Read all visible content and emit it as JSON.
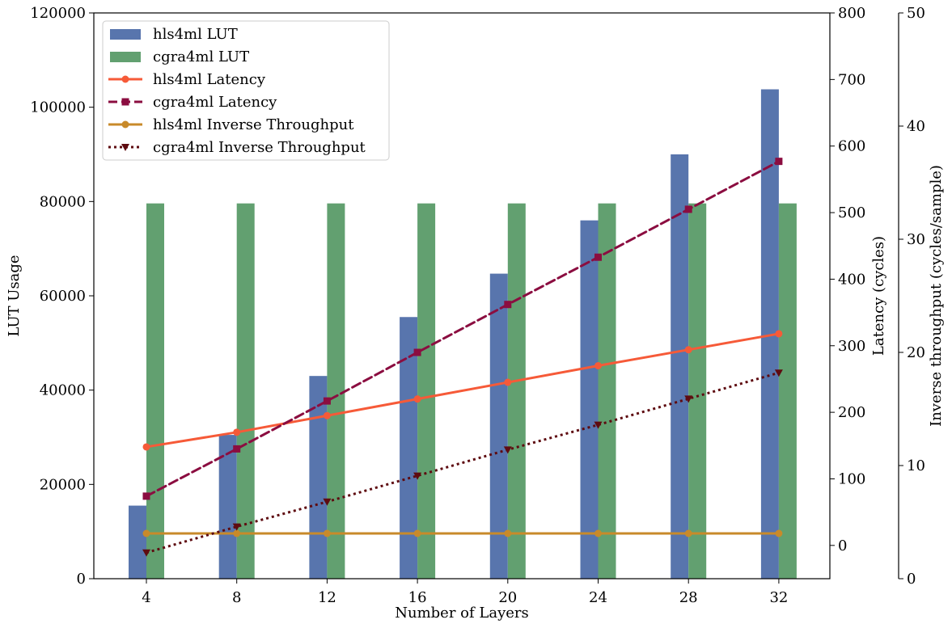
{
  "chart_data": {
    "type": "bar+line",
    "xlabel": "Number of Layers",
    "categories": [
      "4",
      "8",
      "12",
      "16",
      "20",
      "24",
      "28",
      "32"
    ],
    "axes": {
      "left": {
        "label": "LUT Usage",
        "ylim": [
          0,
          120000
        ],
        "ticks": [
          "0",
          "20000",
          "40000",
          "60000",
          "80000",
          "100000",
          "120000"
        ]
      },
      "right1": {
        "label": "Latency (cycles)",
        "ylim": [
          -50,
          800
        ],
        "ticks": [
          "0",
          "100",
          "200",
          "300",
          "400",
          "500",
          "600",
          "700",
          "800"
        ]
      },
      "right2": {
        "label": "Inverse throughput (cycles/sample)",
        "ylim": [
          0,
          50
        ],
        "ticks": [
          "0",
          "10",
          "20",
          "30",
          "40",
          "50"
        ]
      }
    },
    "series": [
      {
        "name": "hls4ml LUT",
        "kind": "bar",
        "axis": "left",
        "color": "#5875ad",
        "values": [
          15500,
          30500,
          43000,
          55500,
          64700,
          76000,
          90000,
          103800
        ]
      },
      {
        "name": "cgra4ml LUT",
        "kind": "bar",
        "axis": "left",
        "color": "#62a070",
        "values": [
          79600,
          79600,
          79600,
          79600,
          79600,
          79600,
          79600,
          79600
        ]
      },
      {
        "name": "hls4ml Latency",
        "kind": "line",
        "axis": "right1",
        "color": "#f65a38",
        "dash": "solid",
        "marker": "circle",
        "values": [
          148,
          170,
          195,
          220,
          245,
          270,
          294,
          318
        ]
      },
      {
        "name": "cgra4ml Latency",
        "kind": "line",
        "axis": "right1",
        "color": "#8b0d40",
        "dash": "dashed",
        "marker": "square",
        "values": [
          74,
          145,
          217,
          290,
          362,
          433,
          505,
          577
        ]
      },
      {
        "name": "hls4ml Inverse Throughput",
        "kind": "line",
        "axis": "right2",
        "color": "#c88a2a",
        "dash": "solid",
        "marker": "circle",
        "values": [
          4,
          4,
          4,
          4,
          4,
          4,
          4,
          4
        ]
      },
      {
        "name": "cgra4ml Inverse Throughput",
        "kind": "line",
        "axis": "right2",
        "color": "#5e0b10",
        "dash": "dotted",
        "marker": "triangle-down",
        "values": [
          2.3,
          4.6,
          6.8,
          9.1,
          11.4,
          13.6,
          15.9,
          18.2
        ]
      }
    ],
    "legend_position": "top-left",
    "grid": false
  }
}
